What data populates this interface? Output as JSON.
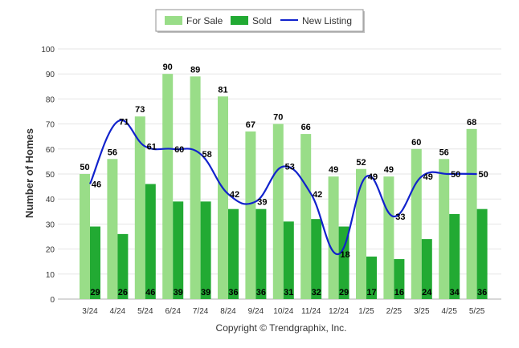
{
  "chart_data": {
    "type": "bar",
    "categories": [
      "3/24",
      "4/24",
      "5/24",
      "6/24",
      "7/24",
      "8/24",
      "9/24",
      "10/24",
      "11/24",
      "12/24",
      "1/25",
      "2/25",
      "3/25",
      "4/25",
      "5/25"
    ],
    "series": [
      {
        "name": "For Sale",
        "type": "bar",
        "color": "#99dd88",
        "values": [
          50,
          56,
          73,
          90,
          89,
          81,
          67,
          70,
          66,
          49,
          52,
          49,
          60,
          56,
          68
        ]
      },
      {
        "name": "Sold",
        "type": "bar",
        "color": "#22aa33",
        "values": [
          29,
          26,
          46,
          39,
          39,
          36,
          36,
          31,
          32,
          29,
          17,
          16,
          24,
          34,
          36
        ]
      },
      {
        "name": "New Listing",
        "type": "line",
        "color": "#1122cc",
        "values": [
          46,
          71,
          61,
          60,
          58,
          42,
          39,
          53,
          42,
          18,
          49,
          33,
          49,
          50,
          50
        ]
      }
    ],
    "ylabel": "Number of Homes",
    "ylim": [
      0,
      100
    ],
    "yticks": [
      0,
      10,
      20,
      30,
      40,
      50,
      60,
      70,
      80,
      90,
      100
    ],
    "grid": true,
    "legend": "top-center"
  },
  "footer": {
    "copyright": "Copyright © Trendgraphix, Inc."
  }
}
